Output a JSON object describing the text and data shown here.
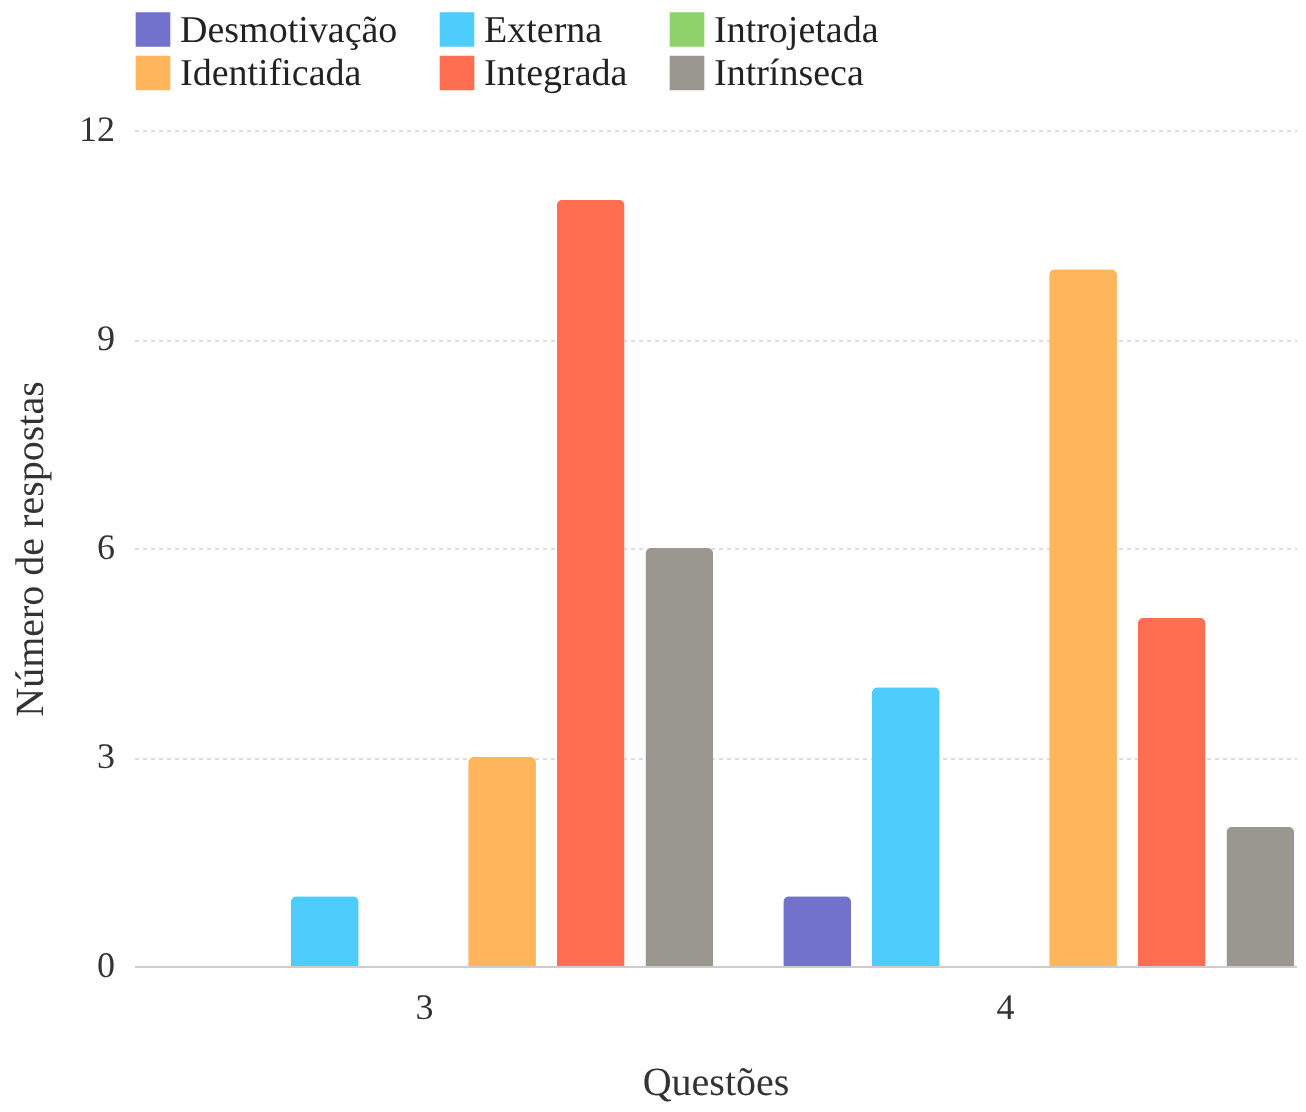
{
  "chart_data": {
    "type": "bar",
    "xlabel": "Questões",
    "ylabel": "Número de respostas",
    "categories": [
      "3",
      "4"
    ],
    "series": [
      {
        "name": "Desmotivação",
        "color": "#7272cc",
        "values": [
          0,
          1
        ]
      },
      {
        "name": "Externa",
        "color": "#4ecdfd",
        "values": [
          1,
          4
        ]
      },
      {
        "name": "Introjetada",
        "color": "#8fd16b",
        "values": [
          0,
          0
        ]
      },
      {
        "name": "Identificada",
        "color": "#ffb55c",
        "values": [
          3,
          10
        ]
      },
      {
        "name": "Integrada",
        "color": "#ff6e50",
        "values": [
          11,
          5
        ]
      },
      {
        "name": "Intrínseca",
        "color": "#9a9690",
        "values": [
          6,
          2
        ]
      }
    ],
    "ylim": [
      0,
      12
    ],
    "yticks": [
      0,
      3,
      6,
      9,
      12
    ],
    "grid": "y",
    "legend": "top"
  }
}
